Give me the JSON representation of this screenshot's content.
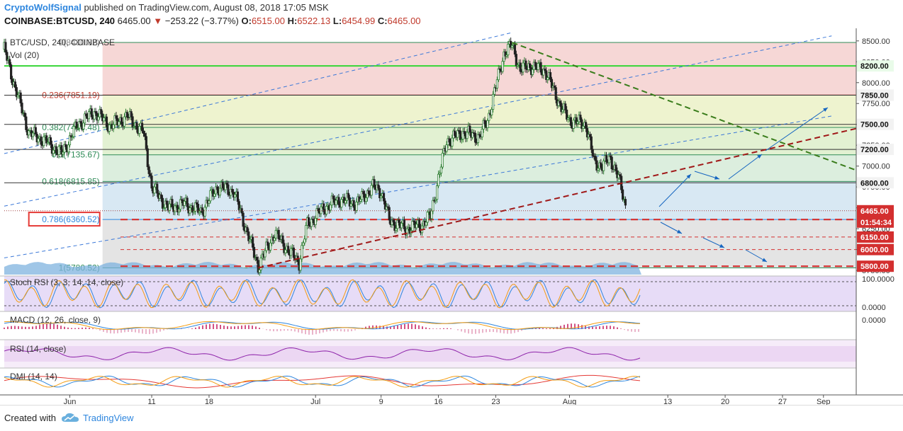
{
  "header": {
    "author": "CryptoWolfSignal",
    "published_text": "published on TradingView.com, August 08, 2018 17:05 MSK",
    "symbol": "COINBASE:BTCUSD, 240",
    "price": "6465.00",
    "change_arrow": "▼",
    "change": "−253.22 (−3.77%)",
    "o_label": "O:",
    "o_value": "6515.00",
    "h_label": "H:",
    "h_value": "6522.13",
    "l_label": "L:",
    "l_value": "6454.99",
    "c_label": "C:",
    "c_value": "6465.00"
  },
  "chart_labels": {
    "symbol_legend": "BTC/USD, 240, COINBASE",
    "vol_legend": "Vol (20)",
    "stoch_legend": "Stoch RSI (3, 3, 14, 14, close)",
    "macd_legend": "MACD (12, 26, close, 9)",
    "rsi_legend": "RSI (14, close)",
    "dmi_legend": "DMI (14, 14)"
  },
  "chart_data": {
    "type": "candlestick",
    "symbol": "COINBASE:BTCUSD",
    "timeframe": "240",
    "price_axis": {
      "range": [
        5700,
        8600
      ],
      "ticks": [
        8500,
        8250,
        8000,
        7750,
        7500,
        7250,
        7000,
        6750,
        6500,
        6250,
        6000,
        5750
      ],
      "tick_labels": [
        "8500.00",
        "8250.00",
        "8000.00",
        "7750.00",
        "7500.00",
        "7250.00",
        "7000.00",
        "6750.00",
        "6500.00",
        "6250.00",
        "6000.00",
        "5750.00"
      ]
    },
    "time_axis": {
      "ticks": [
        "2018-06-01",
        "2018-06-11",
        "2018-06-18",
        "2018-07-01",
        "2018-07-09",
        "2018-07-16",
        "2018-07-23",
        "2018-08-01",
        "2018-08-13",
        "2018-08-20",
        "2018-08-27",
        "2018-09-01"
      ],
      "tick_labels": [
        "Jun",
        "11",
        "18",
        "Jul",
        "9",
        "16",
        "23",
        "Aug",
        "13",
        "20",
        "27",
        "Sep"
      ]
    },
    "price_path": [
      [
        "2018-05-24",
        8400
      ],
      [
        "2018-05-25",
        8050
      ],
      [
        "2018-05-27",
        7400
      ],
      [
        "2018-05-29",
        7300
      ],
      [
        "2018-05-31",
        7150
      ],
      [
        "2018-06-02",
        7500
      ],
      [
        "2018-06-04",
        7650
      ],
      [
        "2018-06-06",
        7480
      ],
      [
        "2018-06-08",
        7600
      ],
      [
        "2018-06-10",
        7400
      ],
      [
        "2018-06-11",
        6750
      ],
      [
        "2018-06-13",
        6500
      ],
      [
        "2018-06-15",
        6550
      ],
      [
        "2018-06-17",
        6450
      ],
      [
        "2018-06-19",
        6750
      ],
      [
        "2018-06-21",
        6700
      ],
      [
        "2018-06-23",
        6100
      ],
      [
        "2018-06-24",
        5800
      ],
      [
        "2018-06-26",
        6200
      ],
      [
        "2018-06-28",
        5950
      ],
      [
        "2018-06-29",
        5850
      ],
      [
        "2018-06-30",
        6300
      ],
      [
        "2018-07-02",
        6500
      ],
      [
        "2018-07-04",
        6600
      ],
      [
        "2018-07-06",
        6550
      ],
      [
        "2018-07-08",
        6750
      ],
      [
        "2018-07-09",
        6700
      ],
      [
        "2018-07-10",
        6350
      ],
      [
        "2018-07-12",
        6250
      ],
      [
        "2018-07-14",
        6300
      ],
      [
        "2018-07-15",
        6400
      ],
      [
        "2018-07-17",
        7300
      ],
      [
        "2018-07-19",
        7400
      ],
      [
        "2018-07-21",
        7350
      ],
      [
        "2018-07-22",
        7550
      ],
      [
        "2018-07-24",
        8350
      ],
      [
        "2018-07-25",
        8450
      ],
      [
        "2018-07-26",
        8150
      ],
      [
        "2018-07-27",
        8200
      ],
      [
        "2018-07-29",
        8150
      ],
      [
        "2018-07-31",
        7700
      ],
      [
        "2018-08-01",
        7550
      ],
      [
        "2018-08-03",
        7500
      ],
      [
        "2018-08-04",
        7050
      ],
      [
        "2018-08-05",
        7000
      ],
      [
        "2018-08-06",
        7100
      ],
      [
        "2018-08-07",
        6850
      ],
      [
        "2018-08-08",
        6465
      ]
    ],
    "fibonacci": [
      {
        "level": "0",
        "price": 8480.82,
        "label": "0(8480.82)"
      },
      {
        "level": "0.236",
        "price": 7851.19,
        "label": "0.236(7851.19)"
      },
      {
        "level": "0.382",
        "price": 7463.48,
        "label": "0.382(7463.48)"
      },
      {
        "level": "0.5",
        "price": 7135.67,
        "label": "0.5(7135.67)"
      },
      {
        "level": "0.618",
        "price": 6815.85,
        "label": "0.618(6815.85)"
      },
      {
        "level": "0.786",
        "price": 6360.52,
        "label": "0.786(6360.52)"
      },
      {
        "level": "1",
        "price": 5780.52,
        "label": "1(5780.52)"
      }
    ],
    "horizontal_levels": [
      {
        "price": 8200,
        "label": "8200.00",
        "style": "green"
      },
      {
        "price": 7850,
        "label": "7850.00",
        "style": "dark"
      },
      {
        "price": 7500,
        "label": "7500.00",
        "style": "dark"
      },
      {
        "price": 7200,
        "label": "7200.00",
        "style": "dark"
      },
      {
        "price": 6800,
        "label": "6800.00",
        "style": "dark"
      },
      {
        "price": 6360,
        "label": "6360.00",
        "style": "red-dashed"
      },
      {
        "price": 6150,
        "label": "6150.00",
        "style": "red-dashed"
      },
      {
        "price": 6000,
        "label": "6000.00",
        "style": "red-dashed"
      },
      {
        "price": 5800,
        "label": "5800.00",
        "style": "red-dashed"
      }
    ],
    "current_price": {
      "price": 6465,
      "label": "6465.00",
      "countdown": "01:54:34"
    },
    "indicators": {
      "stoch_rsi": {
        "ticks": [
          "100.0000",
          "0.0000"
        ]
      },
      "macd": {
        "ticks": [
          "0.0000"
        ]
      }
    },
    "colors": {
      "accent": "#2e86de",
      "candle_up": "#2e7d32",
      "candle_down": "#222222",
      "support": "#d32f2f",
      "trend_green": "#3a7d1c",
      "price_tag": "#d32f2f"
    }
  },
  "footer": {
    "created_with": "Created with",
    "brand": "TradingView"
  }
}
